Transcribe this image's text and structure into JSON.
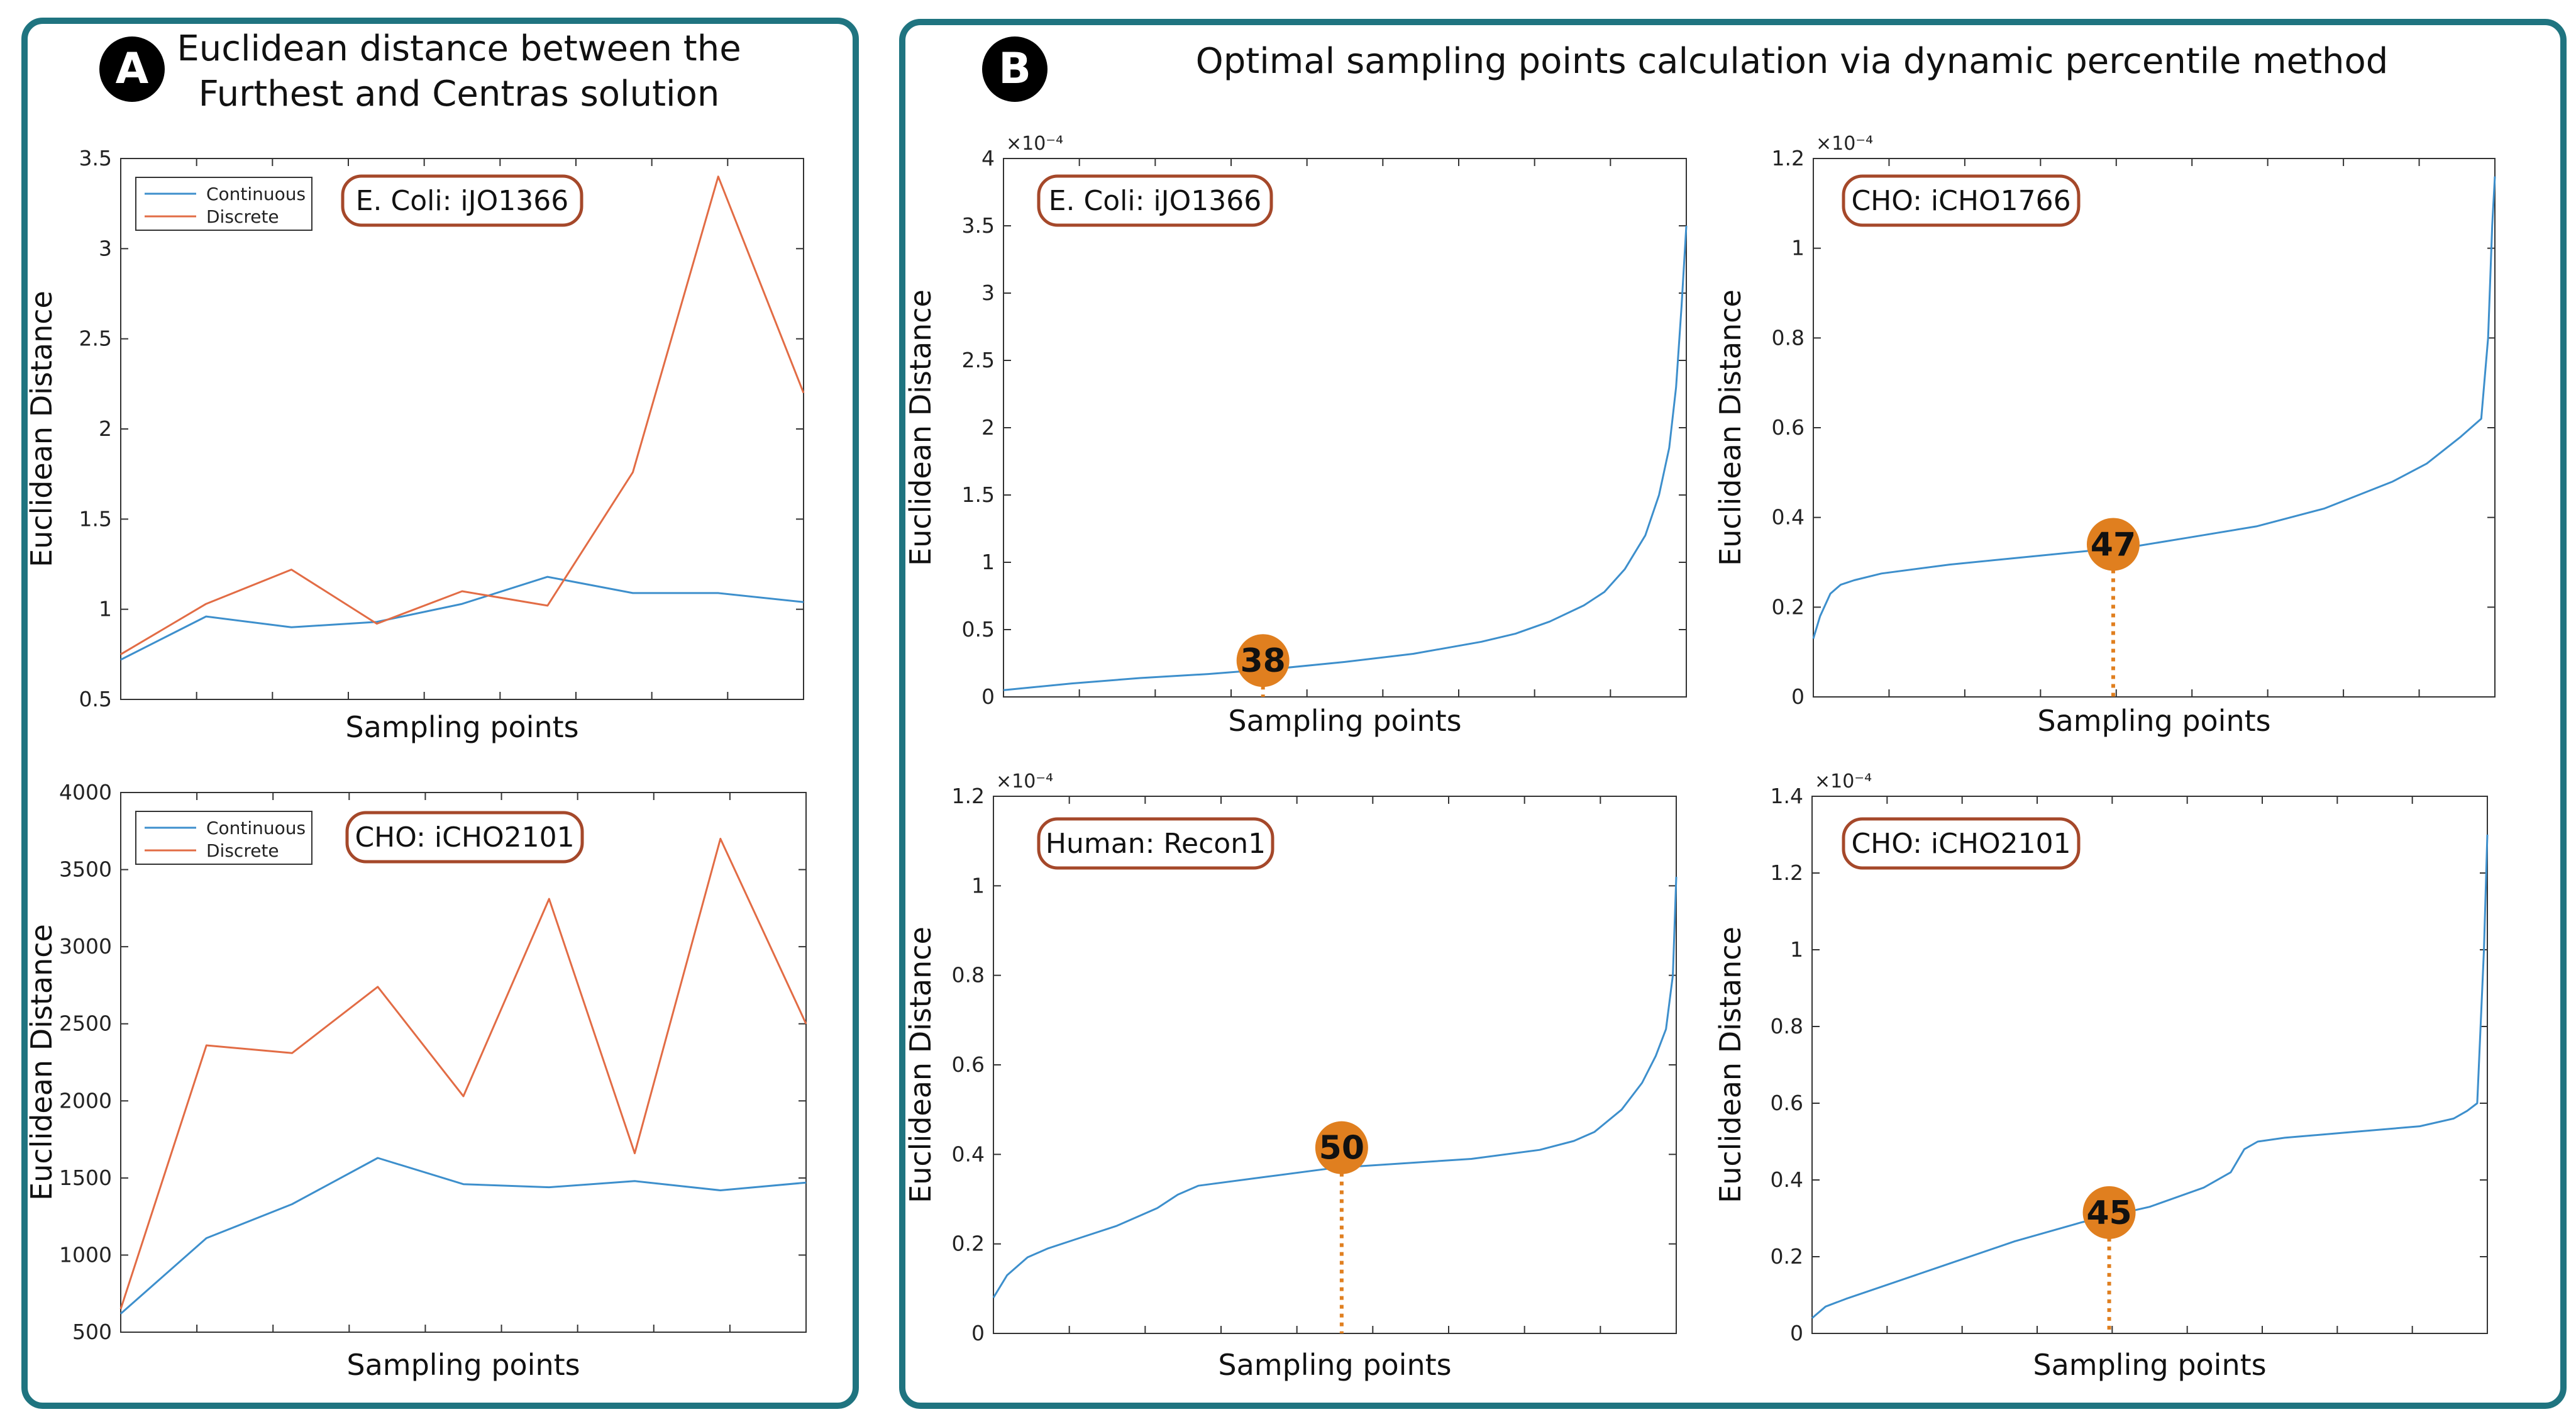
{
  "panel_a": {
    "badge": "A",
    "title_line1": "Euclidean distance between the",
    "title_line2": "Furthest and Centras solution"
  },
  "panel_b": {
    "badge": "B",
    "title": "Optimal sampling points calculation via dynamic percentile method"
  },
  "colors": {
    "continuous": "#3d8fcc",
    "discrete": "#e26c45",
    "marker": "#e07f1f",
    "frame": "#1f7480",
    "model_box": "#a5482a"
  },
  "chart_data": [
    {
      "id": "a1",
      "type": "line",
      "model": "E. Coli: iJO1366",
      "xlabel": "Sampling points",
      "ylabel": "Euclidean Distance",
      "ylim": [
        0.5,
        3.5
      ],
      "yticks": [
        0.5,
        1,
        1.5,
        2,
        2.5,
        3,
        3.5
      ],
      "ytick_labels": [
        "0.5",
        "1",
        "1.5",
        "2",
        "2.5",
        "3",
        "3.5"
      ],
      "x": [
        1,
        2,
        3,
        4,
        5,
        6,
        7,
        8,
        9
      ],
      "legend": [
        "Continuous",
        "Discrete"
      ],
      "series": [
        {
          "name": "Continuous",
          "values": [
            0.72,
            0.96,
            0.9,
            0.93,
            1.03,
            1.18,
            1.09,
            1.09,
            1.04
          ]
        },
        {
          "name": "Discrete",
          "values": [
            0.75,
            1.03,
            1.22,
            0.92,
            1.1,
            1.02,
            1.76,
            3.4,
            2.2
          ]
        }
      ]
    },
    {
      "id": "a2",
      "type": "line",
      "model": "CHO: iCHO2101",
      "xlabel": "Sampling points",
      "ylabel": "Euclidean Distance",
      "ylim": [
        500,
        4000
      ],
      "yticks": [
        500,
        1000,
        1500,
        2000,
        2500,
        3000,
        3500,
        4000
      ],
      "ytick_labels": [
        "500",
        "1000",
        "1500",
        "2000",
        "2500",
        "3000",
        "3500",
        "4000"
      ],
      "x": [
        1,
        2,
        3,
        4,
        5,
        6,
        7,
        8,
        9
      ],
      "legend": [
        "Continuous",
        "Discrete"
      ],
      "series": [
        {
          "name": "Continuous",
          "values": [
            620,
            1110,
            1330,
            1630,
            1460,
            1440,
            1480,
            1420,
            1470
          ]
        },
        {
          "name": "Discrete",
          "values": [
            650,
            2360,
            2310,
            2740,
            2030,
            3310,
            1660,
            3700,
            2500
          ]
        }
      ]
    },
    {
      "id": "b1",
      "type": "line",
      "model": "E. Coli: iJO1366",
      "xlabel": "Sampling points",
      "ylabel": "Euclidean Distance",
      "ylim": [
        0,
        4
      ],
      "yticks": [
        0,
        0.5,
        1,
        1.5,
        2,
        2.5,
        3,
        3.5,
        4
      ],
      "ytick_labels": [
        "0",
        "0.5",
        "1",
        "1.5",
        "2",
        "2.5",
        "3",
        "3.5",
        "4"
      ],
      "exponent": "×10⁻⁴",
      "xlim": [
        0,
        100
      ],
      "x": [
        0,
        10,
        20,
        30,
        40,
        50,
        60,
        70,
        75,
        80,
        85,
        88,
        91,
        94,
        96,
        97.5,
        98.5,
        99.3,
        100
      ],
      "series": [
        {
          "name": "Continuous",
          "values": [
            0.05,
            0.1,
            0.14,
            0.17,
            0.21,
            0.26,
            0.32,
            0.41,
            0.47,
            0.56,
            0.68,
            0.78,
            0.95,
            1.2,
            1.5,
            1.85,
            2.3,
            2.9,
            3.5
          ]
        }
      ],
      "marker": {
        "label": "38",
        "x": 38,
        "y": 0.27
      }
    },
    {
      "id": "b2",
      "type": "line",
      "model": "CHO: iCHO1766",
      "xlabel": "Sampling points",
      "ylabel": "Euclidean Distance",
      "ylim": [
        0,
        1.2
      ],
      "yticks": [
        0,
        0.2,
        0.4,
        0.6,
        0.8,
        1,
        1.2
      ],
      "ytick_labels": [
        "0",
        "0.2",
        "0.4",
        "0.6",
        "0.8",
        "1",
        "1.2"
      ],
      "exponent": "×10⁻⁴",
      "xlim": [
        0,
        100
      ],
      "x": [
        0,
        1,
        2.5,
        4,
        6,
        10,
        20,
        30,
        40,
        47,
        55,
        65,
        75,
        85,
        90,
        95,
        98,
        99,
        99.6,
        100
      ],
      "series": [
        {
          "name": "Continuous",
          "values": [
            0.13,
            0.18,
            0.23,
            0.25,
            0.26,
            0.275,
            0.295,
            0.31,
            0.325,
            0.335,
            0.355,
            0.38,
            0.42,
            0.48,
            0.52,
            0.58,
            0.62,
            0.8,
            1.05,
            1.16
          ]
        }
      ],
      "marker": {
        "label": "47",
        "x": 44,
        "y": 0.34
      }
    },
    {
      "id": "b3",
      "type": "line",
      "model": "Human: Recon1",
      "xlabel": "Sampling points",
      "ylabel": "Euclidean Distance",
      "ylim": [
        0,
        1.2
      ],
      "yticks": [
        0,
        0.2,
        0.4,
        0.6,
        0.8,
        1,
        1.2
      ],
      "ytick_labels": [
        "0",
        "0.2",
        "0.4",
        "0.6",
        "0.8",
        "1",
        "1.2"
      ],
      "exponent": "×10⁻⁴",
      "xlim": [
        0,
        100
      ],
      "x": [
        0,
        2,
        5,
        8,
        12,
        18,
        24,
        27,
        30,
        40,
        50,
        60,
        70,
        80,
        85,
        88,
        92,
        95,
        97,
        98.5,
        99.5,
        100
      ],
      "series": [
        {
          "name": "Continuous",
          "values": [
            0.08,
            0.13,
            0.17,
            0.19,
            0.21,
            0.24,
            0.28,
            0.31,
            0.33,
            0.35,
            0.37,
            0.38,
            0.39,
            0.41,
            0.43,
            0.45,
            0.5,
            0.56,
            0.62,
            0.68,
            0.8,
            1.02
          ]
        }
      ],
      "marker": {
        "label": "50",
        "x": 51,
        "y": 0.415
      }
    },
    {
      "id": "b4",
      "type": "line",
      "model": "CHO: iCHO2101",
      "xlabel": "Sampling points",
      "ylabel": "Euclidean Distance",
      "ylim": [
        0,
        1.4
      ],
      "yticks": [
        0,
        0.2,
        0.4,
        0.6,
        0.8,
        1,
        1.2,
        1.4
      ],
      "ytick_labels": [
        "0",
        "0.2",
        "0.4",
        "0.6",
        "0.8",
        "1",
        "1.2",
        "1.4"
      ],
      "exponent": "×10⁻⁴",
      "xlim": [
        0,
        100
      ],
      "x": [
        0,
        2,
        5,
        10,
        20,
        30,
        40,
        50,
        58,
        62,
        64,
        66,
        70,
        80,
        90,
        95,
        97,
        98.5,
        99.5,
        100
      ],
      "series": [
        {
          "name": "Continuous",
          "values": [
            0.04,
            0.07,
            0.09,
            0.12,
            0.18,
            0.24,
            0.29,
            0.33,
            0.38,
            0.42,
            0.48,
            0.5,
            0.51,
            0.525,
            0.54,
            0.56,
            0.58,
            0.6,
            1.0,
            1.3
          ]
        }
      ],
      "marker": {
        "label": "45",
        "x": 44,
        "y": 0.315
      }
    }
  ]
}
